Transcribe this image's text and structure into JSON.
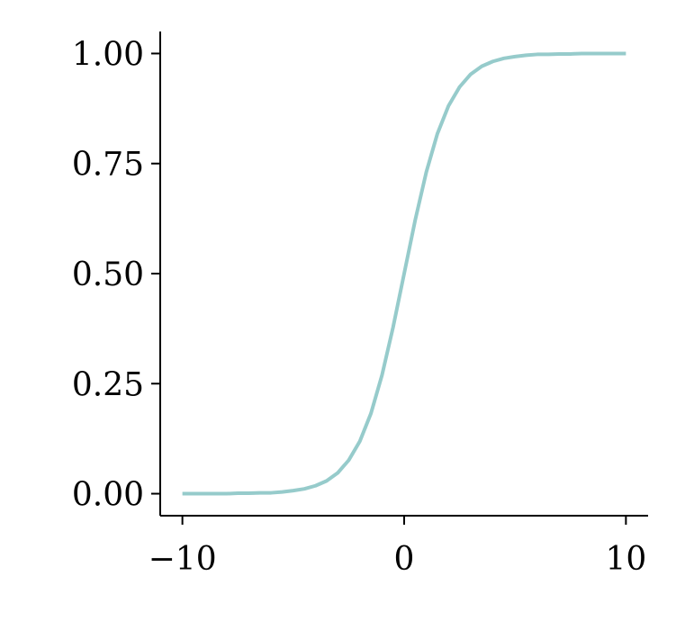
{
  "chart_data": {
    "type": "line",
    "x": [
      -10,
      -9.5,
      -9,
      -8.5,
      -8,
      -7.5,
      -7,
      -6.5,
      -6,
      -5.5,
      -5,
      -4.5,
      -4,
      -3.5,
      -3,
      -2.5,
      -2,
      -1.5,
      -1,
      -0.5,
      0,
      0.5,
      1,
      1.5,
      2,
      2.5,
      3,
      3.5,
      4,
      4.5,
      5,
      5.5,
      6,
      6.5,
      7,
      7.5,
      8,
      8.5,
      9,
      9.5,
      10
    ],
    "series": [
      {
        "color": "#96cbcb",
        "values": [
          0,
          0,
          0,
          0,
          0,
          0.001,
          0.001,
          0.002,
          0.002,
          0.004,
          0.007,
          0.011,
          0.018,
          0.029,
          0.047,
          0.076,
          0.119,
          0.182,
          0.269,
          0.378,
          0.5,
          0.622,
          0.731,
          0.818,
          0.881,
          0.924,
          0.953,
          0.971,
          0.982,
          0.989,
          0.993,
          0.996,
          0.998,
          0.998,
          0.999,
          0.999,
          1,
          1,
          1,
          1,
          1
        ]
      }
    ],
    "xlim": [
      -11,
      11
    ],
    "ylim": [
      -0.05,
      1.05
    ],
    "xticks": [
      {
        "value": -10,
        "label": "−10"
      },
      0,
      10
    ],
    "yticks": [
      {
        "value": 0,
        "label": "0.00"
      },
      {
        "value": 0.25,
        "label": "0.25"
      },
      {
        "value": 0.5,
        "label": "0.50"
      },
      {
        "value": 0.75,
        "label": "0.75"
      },
      {
        "value": 1,
        "label": "1.00"
      }
    ],
    "grid": false
  }
}
